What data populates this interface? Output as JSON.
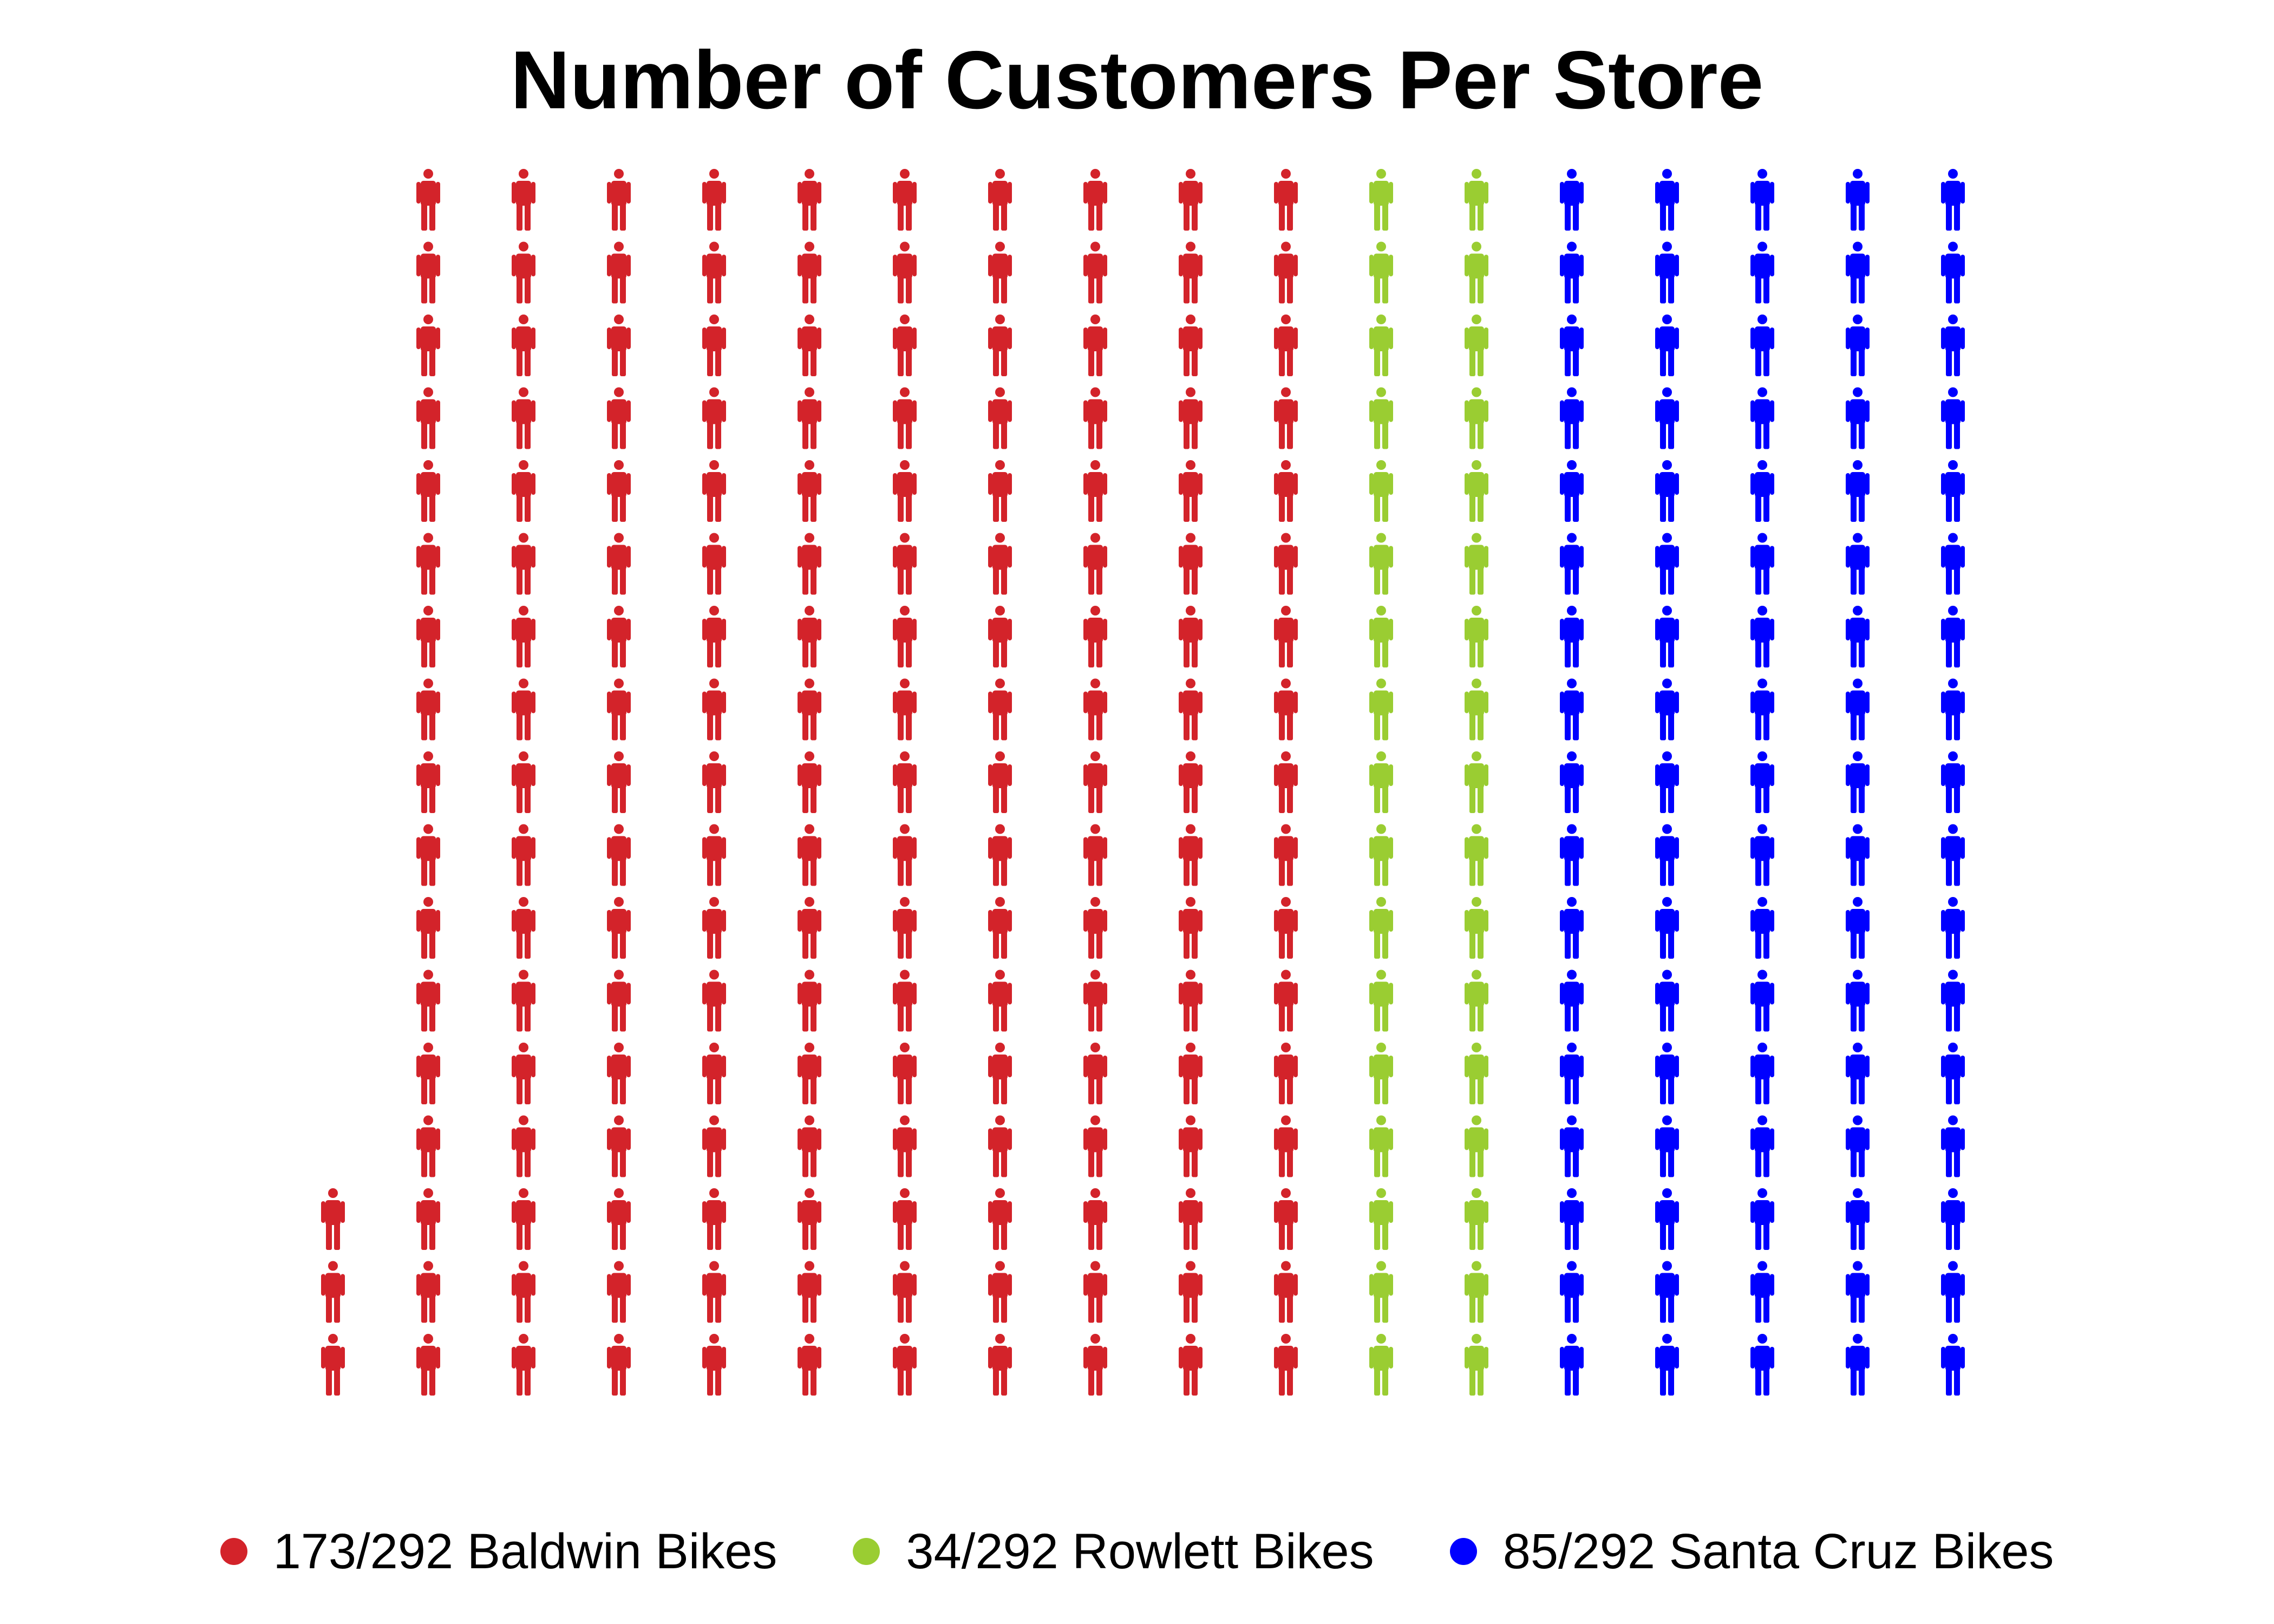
{
  "chart_data": {
    "type": "pictogram",
    "title": "Number of Customers Per Store",
    "total": 292,
    "series": [
      {
        "name": "Baldwin Bikes",
        "value": 173,
        "color": "#d3232a",
        "label": "173/292 Baldwin Bikes"
      },
      {
        "name": "Rowlett Bikes",
        "value": 34,
        "color": "#9acd32",
        "label": "34/292 Rowlett Bikes"
      },
      {
        "name": "Santa Cruz Bikes",
        "value": 85,
        "color": "#0000ff",
        "label": "85/292 Santa Cruz Bikes"
      }
    ],
    "icon": "person-icon",
    "legend_position": "bottom",
    "grid": false
  }
}
